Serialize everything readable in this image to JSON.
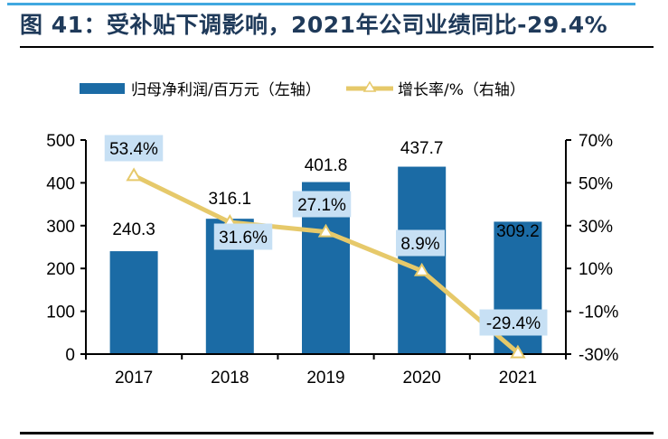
{
  "figure": {
    "title": "图 41：受补贴下调影响，2021年公司业绩同比-29.4%"
  },
  "colors": {
    "bar": "#1b6ba5",
    "line": "#e6c96a",
    "label_box": "#c7e0f4",
    "accent_top": "#41a8e0",
    "title_text": "#1f3a5a"
  },
  "chart_data": {
    "type": "bar+line",
    "title": "图 41：受补贴下调影响，2021年公司业绩同比-29.4%",
    "categories": [
      "2017",
      "2018",
      "2019",
      "2020",
      "2021"
    ],
    "series": [
      {
        "name": "归母净利润/百万元（左轴）",
        "type": "bar",
        "axis": "left",
        "values": [
          240.3,
          316.1,
          401.8,
          437.7,
          309.2
        ],
        "labels": [
          "240.3",
          "316.1",
          "401.8",
          "437.7",
          "309.2"
        ]
      },
      {
        "name": "增长率/%（右轴）",
        "type": "line",
        "axis": "right",
        "marker": "triangle",
        "values": [
          53.4,
          31.6,
          27.1,
          8.9,
          -29.4
        ],
        "labels": [
          "53.4%",
          "31.6%",
          "27.1%",
          "8.9%",
          "-29.4%"
        ]
      }
    ],
    "left_axis": {
      "range": [
        0,
        500
      ],
      "ticks": [
        "0",
        "100",
        "200",
        "300",
        "400",
        "500"
      ],
      "tick_values": [
        0,
        100,
        200,
        300,
        400,
        500
      ]
    },
    "right_axis": {
      "range": [
        -30,
        70
      ],
      "ticks": [
        "-30%",
        "-10%",
        "10%",
        "30%",
        "50%",
        "70%"
      ],
      "tick_values": [
        -30,
        -10,
        10,
        30,
        50,
        70
      ]
    },
    "legend_position": "top",
    "grid": false
  }
}
